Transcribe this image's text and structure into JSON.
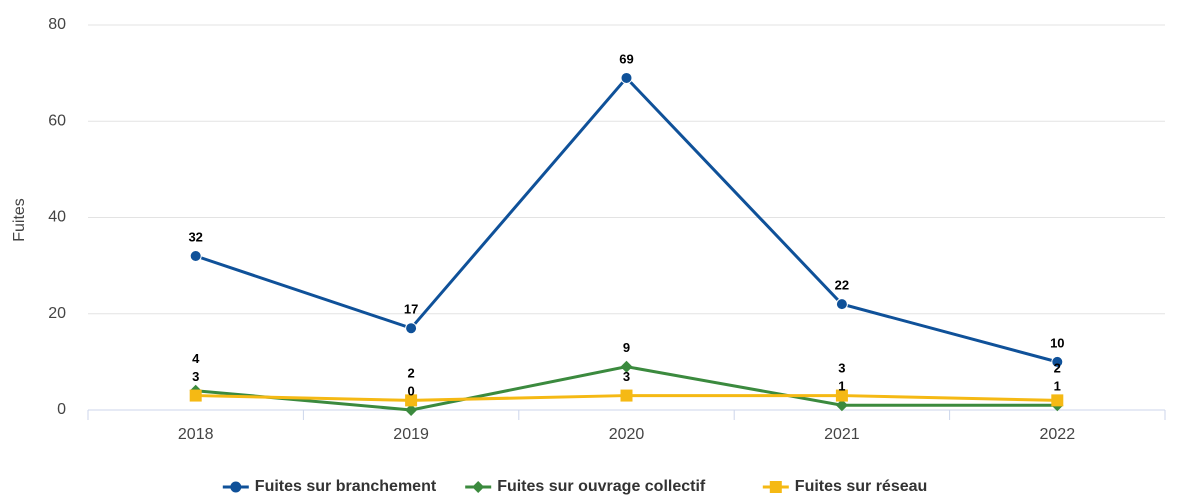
{
  "chart_data": {
    "type": "line",
    "y_label": "Fuites",
    "categories": [
      "2018",
      "2019",
      "2020",
      "2021",
      "2022"
    ],
    "series": [
      {
        "name": "Fuites sur branchement",
        "color": "#0f5199",
        "marker": "circle",
        "values": [
          32,
          17,
          69,
          22,
          10
        ]
      },
      {
        "name": "Fuites sur ouvrage collectif",
        "color": "#3b8a3e",
        "marker": "diamond",
        "values": [
          4,
          0,
          9,
          1,
          1
        ]
      },
      {
        "name": "Fuites sur réseau",
        "color": "#f5b914",
        "marker": "square",
        "values": [
          3,
          2,
          3,
          3,
          2
        ]
      }
    ],
    "ylim": [
      0,
      80
    ],
    "yticks": [
      0,
      20,
      40,
      60,
      80
    ],
    "grid": true,
    "legend": "bottom"
  }
}
